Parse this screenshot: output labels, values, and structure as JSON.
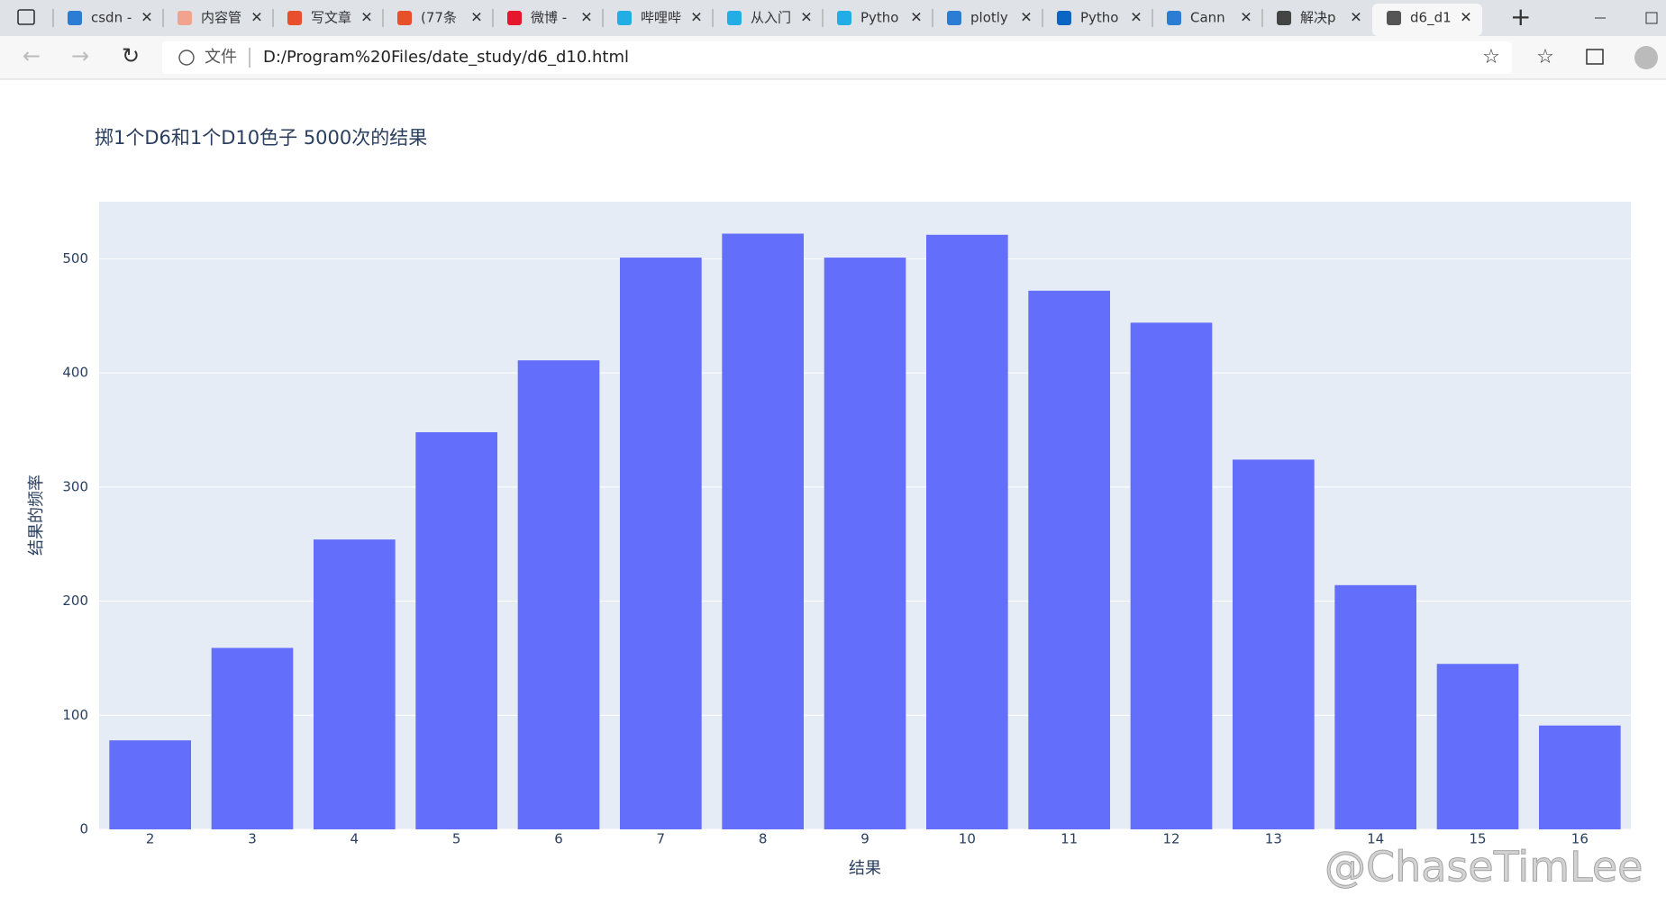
{
  "browser": {
    "tabs": [
      "csdn -",
      "内容管",
      "写文章",
      "(77条",
      "微博 -",
      "哔哩哔",
      "从入门",
      "Pytho",
      "plotly",
      "Pytho",
      "Cann",
      "解决p",
      "d6_d1"
    ],
    "address_label": "文件",
    "url": "D:/Program%20Files/date_study/d6_d10.html"
  },
  "watermark": "@ChaseTimLee",
  "chart_data": {
    "type": "bar",
    "title": "掷1个D6和1个D10色子 5000次的结果",
    "x_label": "结果",
    "y_label": "结果的频率",
    "categories": [
      "2",
      "3",
      "4",
      "5",
      "6",
      "7",
      "8",
      "9",
      "10",
      "11",
      "12",
      "13",
      "14",
      "15",
      "16"
    ],
    "values": [
      78,
      159,
      254,
      348,
      411,
      501,
      522,
      501,
      521,
      472,
      444,
      324,
      214,
      145,
      91
    ],
    "color": "#636efa",
    "ylim": [
      0,
      550
    ],
    "yticks": [
      0,
      100,
      200,
      300,
      400,
      500
    ],
    "grid": true
  }
}
